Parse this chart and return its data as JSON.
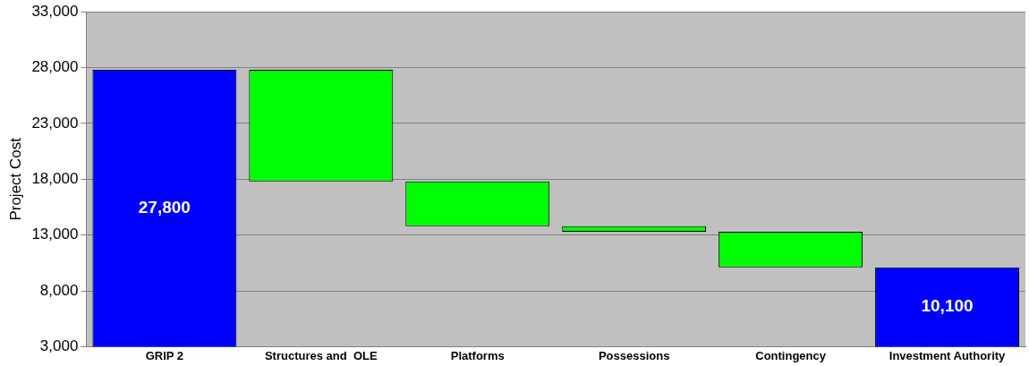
{
  "chart_data": {
    "type": "bar",
    "ylabel": "Project Cost",
    "categories": [
      "GRIP 2",
      "Structures and  OLE",
      "Platforms",
      "Possessions",
      "Contingency",
      "Investment Authority"
    ],
    "values": [
      27800,
      -10000,
      -4000,
      -500,
      -3200,
      10100
    ],
    "base": [
      null,
      27800,
      17800,
      13800,
      13300,
      null
    ],
    "colors": [
      "#0000ff",
      "#00ff00",
      "#00ff00",
      "#00ff00",
      "#00ff00",
      "#0000ff"
    ],
    "value_labels": [
      "27,800",
      null,
      null,
      null,
      null,
      "10,100"
    ],
    "ylim": [
      3000,
      33000
    ],
    "yticks": [
      {
        "value": 3000,
        "label": "3,000"
      },
      {
        "value": 8000,
        "label": "8,000"
      },
      {
        "value": 13000,
        "label": "13,000"
      },
      {
        "value": 18000,
        "label": "18,000"
      },
      {
        "value": 23000,
        "label": "23,000"
      },
      {
        "value": 28000,
        "label": "28,000"
      },
      {
        "value": 33000,
        "label": "33,000"
      }
    ],
    "grid": "y",
    "legend": false
  }
}
